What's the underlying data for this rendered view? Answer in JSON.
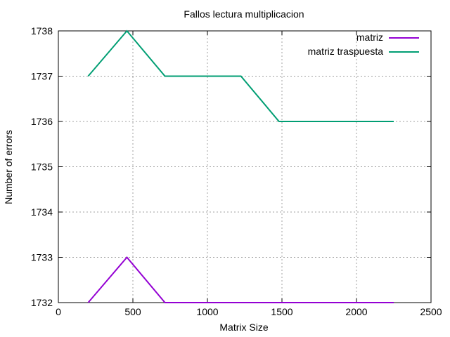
{
  "chart_data": {
    "type": "line",
    "title": "Fallos lectura multiplicacion",
    "xlabel": "Matrix Size",
    "ylabel": "Number of errors",
    "xlim": [
      0,
      2500
    ],
    "ylim": [
      1732,
      1738
    ],
    "xticks": [
      0,
      500,
      1000,
      1500,
      2000,
      2500
    ],
    "yticks": [
      1732,
      1733,
      1734,
      1735,
      1736,
      1737,
      1738
    ],
    "grid": true,
    "legend_position": "top-right",
    "series": [
      {
        "name": "matriz",
        "color": "#9400d3",
        "x": [
          200,
          460,
          715,
          970,
          1225,
          1480,
          1735,
          1990,
          2250
        ],
        "y": [
          1732,
          1733,
          1732,
          1732,
          1732,
          1732,
          1732,
          1732,
          1732
        ]
      },
      {
        "name": "matriz traspuesta",
        "color": "#009e73",
        "x": [
          200,
          460,
          715,
          970,
          1225,
          1480,
          1735,
          1990,
          2250
        ],
        "y": [
          1737,
          1738,
          1737,
          1737,
          1737,
          1736,
          1736,
          1736,
          1736
        ]
      }
    ]
  }
}
